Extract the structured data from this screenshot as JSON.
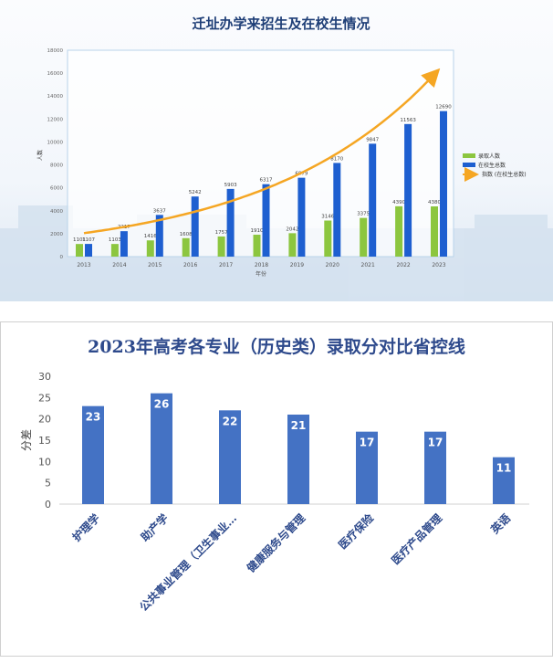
{
  "chart_data": [
    {
      "type": "bar",
      "title": "迁址办学来招生及在校生情况",
      "xlabel": "年份",
      "ylabel": "人数",
      "ylim": [
        0,
        18000
      ],
      "yticks": [
        0,
        2000,
        4000,
        6000,
        8000,
        10000,
        12000,
        14000,
        16000,
        18000
      ],
      "categories": [
        "2013",
        "2014",
        "2015",
        "2016",
        "2017",
        "2018",
        "2019",
        "2020",
        "2021",
        "2022",
        "2023"
      ],
      "series": [
        {
          "name": "录取人数",
          "color": "#8cc63f",
          "values": [
            1101,
            1103,
            1416,
            1608,
            1757,
            1910,
            2042,
            3146,
            3375,
            4390,
            4380
          ]
        },
        {
          "name": "在校生总数",
          "color": "#1e5fd0",
          "values": [
            1107,
            2217,
            3637,
            5242,
            5903,
            6317,
            6879,
            8170,
            9847,
            11563,
            12690
          ]
        }
      ],
      "trendline": {
        "name": "指数 (在校生总数)",
        "type": "exponential",
        "color": "#f5a623"
      },
      "legend": "right",
      "grid": false
    },
    {
      "type": "bar",
      "title": "2023年高考各专业（历史类）录取分对比省控线",
      "xlabel": "",
      "ylabel": "分差",
      "ylim": [
        0,
        30
      ],
      "yticks": [
        0,
        5,
        10,
        15,
        20,
        25,
        30
      ],
      "categories": [
        "护理学",
        "助产学",
        "公共事业管理（卫生事业…",
        "健康服务与管理",
        "医疗保险",
        "医疗产品管理",
        "英语"
      ],
      "values": [
        23,
        26,
        22,
        21,
        17,
        17,
        11
      ],
      "color": "#4472c4",
      "grid": false
    }
  ]
}
